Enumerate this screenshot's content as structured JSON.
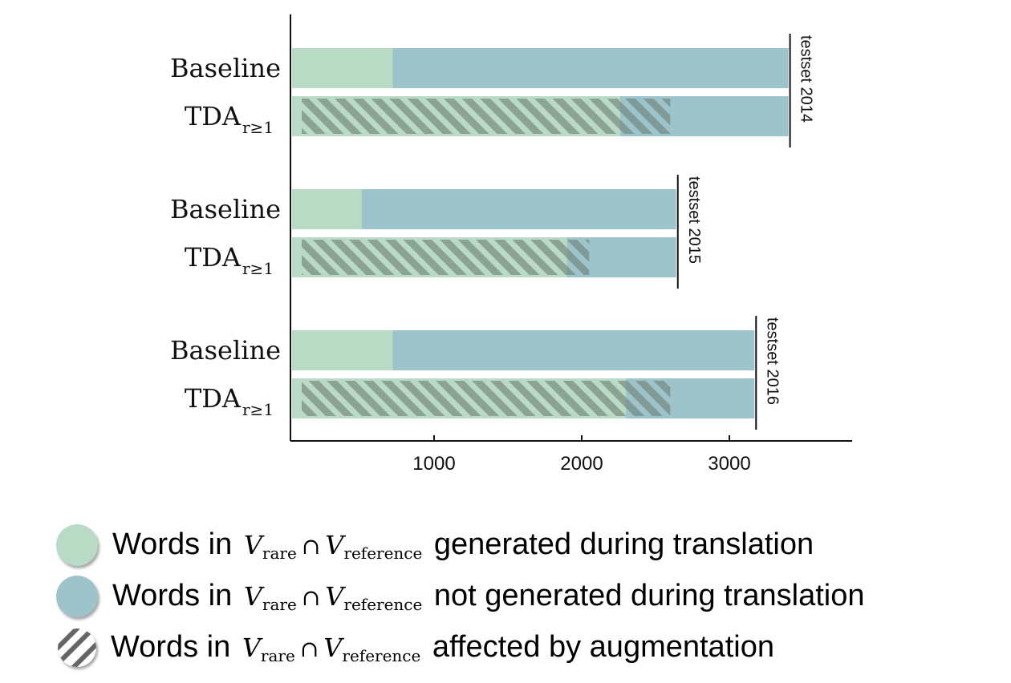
{
  "chart_data": {
    "type": "bar",
    "orientation": "horizontal",
    "stacked": true,
    "groups": [
      {
        "label": "testset 2014",
        "bars": [
          {
            "label": "Baseline",
            "subscript": "",
            "generated": 720,
            "total": 3400,
            "affected": 0
          },
          {
            "label": "TDA",
            "subscript": "r≥1",
            "generated": 2260,
            "total": 3400,
            "affected": 2600
          }
        ]
      },
      {
        "label": "testset 2015",
        "bars": [
          {
            "label": "Baseline",
            "subscript": "",
            "generated": 510,
            "total": 2640,
            "affected": 0
          },
          {
            "label": "TDA",
            "subscript": "r≥1",
            "generated": 1900,
            "total": 2640,
            "affected": 2050
          }
        ]
      },
      {
        "label": "testset 2016",
        "bars": [
          {
            "label": "Baseline",
            "subscript": "",
            "generated": 720,
            "total": 3170,
            "affected": 0
          },
          {
            "label": "TDA",
            "subscript": "r≥1",
            "generated": 2300,
            "total": 3170,
            "affected": 2600
          }
        ]
      }
    ],
    "xticks": [
      1000,
      2000,
      3000
    ],
    "xlim": [
      0,
      3800
    ],
    "colors": {
      "generated": "#b9dac4",
      "not_generated": "#9cc4ca",
      "affected_hatch": "#7a8a80",
      "axis": "#111111"
    },
    "grid": false
  },
  "legend": [
    {
      "prefix": "Words in",
      "set1": "V",
      "set1_sub": "rare",
      "op": "∩",
      "set2": "V",
      "set2_sub": "reference",
      "suffix": "generated during translation",
      "color": "#b9dac4",
      "icon": "circle-icon"
    },
    {
      "prefix": "Words in",
      "set1": "V",
      "set1_sub": "rare",
      "op": "∩",
      "set2": "V",
      "set2_sub": "reference",
      "suffix": "not generated during translation",
      "color": "#9cc4ca",
      "icon": "circle-icon"
    },
    {
      "prefix": "Words in",
      "set1": "V",
      "set1_sub": "rare",
      "op": "∩",
      "set2": "V",
      "set2_sub": "reference",
      "suffix": "affected by augmentation",
      "color": "#777777",
      "icon": "hatched-circle-icon"
    }
  ]
}
